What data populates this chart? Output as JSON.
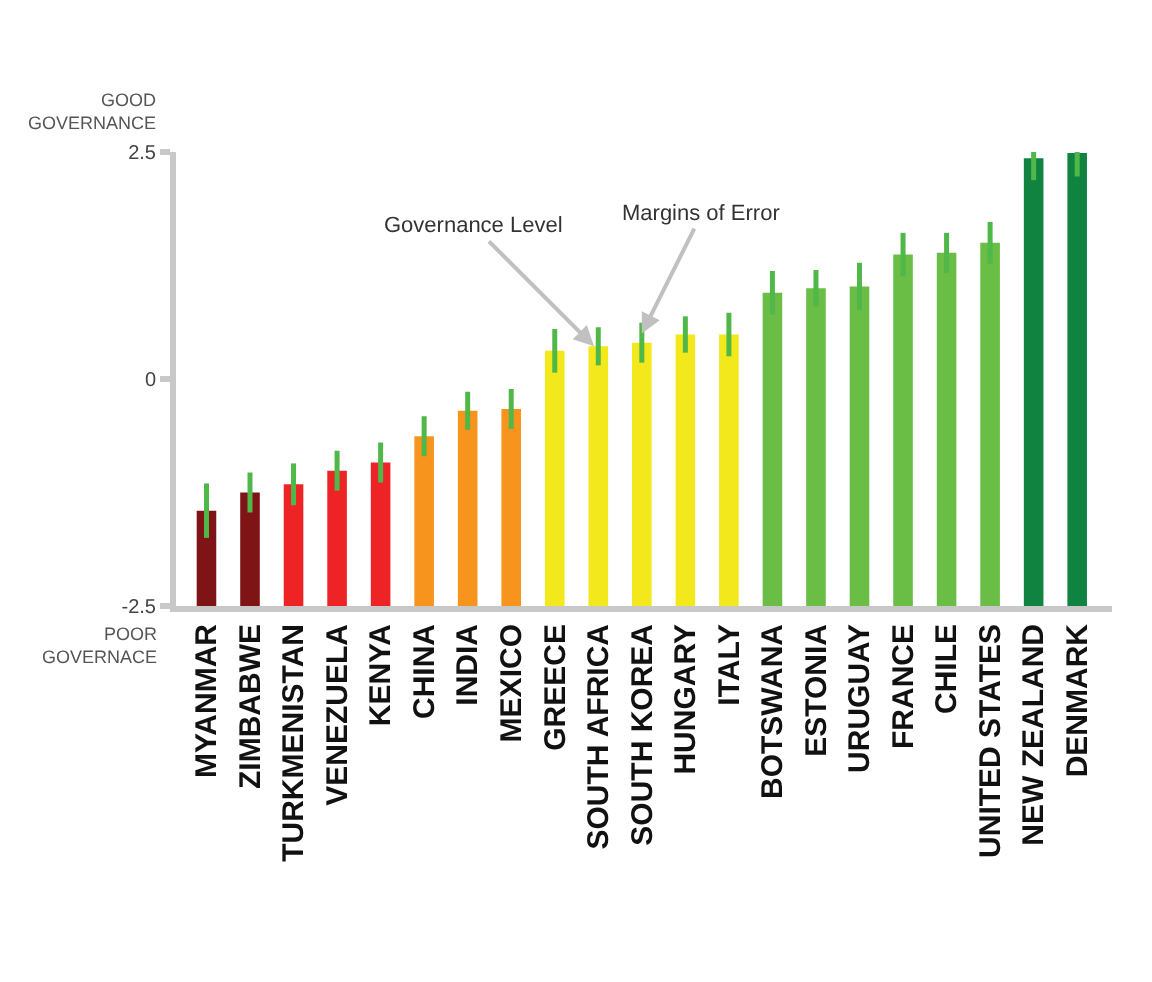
{
  "chart_data": {
    "type": "bar",
    "categories": [
      "MYANMAR",
      "ZIMBABWE",
      "TURKMENISTAN",
      "VENEZUELA",
      "KENYA",
      "CHINA",
      "INDIA",
      "MEXICO",
      "GREECE",
      "SOUTH AFRICA",
      "SOUTH KOREA",
      "HUNGARY",
      "ITALY",
      "BOTSWANA",
      "ESTONIA",
      "URUGUAY",
      "FRANCE",
      "CHILE",
      "UNITED STATES",
      "NEW ZEALAND",
      "DENMARK"
    ],
    "base": [
      -2.5,
      -2.5,
      -2.5,
      -2.5,
      -2.5,
      -2.5,
      -2.5,
      -2.5,
      -2.5,
      -2.5,
      -2.5,
      -2.5,
      -2.5,
      -2.5,
      -2.5,
      -2.5,
      -2.5,
      -2.5,
      -2.5,
      -2.5,
      -2.5
    ],
    "values": [
      1.05,
      1.25,
      1.34,
      1.49,
      1.58,
      1.87,
      2.15,
      2.17,
      2.81,
      2.86,
      2.9,
      2.99,
      2.99,
      3.45,
      3.5,
      3.52,
      3.87,
      3.89,
      4.0,
      4.93,
      4.99
    ],
    "errors": [
      0.3,
      0.22,
      0.23,
      0.22,
      0.22,
      0.22,
      0.21,
      0.22,
      0.24,
      0.21,
      0.22,
      0.2,
      0.24,
      0.24,
      0.2,
      0.26,
      0.24,
      0.22,
      0.23,
      0.24,
      0.26
    ],
    "colors": [
      "#7f1416",
      "#7f1416",
      "#ee2326",
      "#ee2326",
      "#ee2326",
      "#f7941d",
      "#f7941d",
      "#f7941d",
      "#f2e81c",
      "#f2e81c",
      "#f2e81c",
      "#f2e81c",
      "#f2e81c",
      "#6abd45",
      "#6abd45",
      "#6abd45",
      "#6abd45",
      "#6abd45",
      "#6abd45",
      "#108341",
      "#108341"
    ],
    "ylim": [
      -2.5,
      2.5
    ],
    "yticks": [
      -2.5,
      0,
      2.5
    ],
    "legend": false,
    "annotations": [
      "GOOD\nGOVERNANCE",
      "POOR\nGOVERNACE",
      {
        "text": "Governance Level",
        "x": "SOUTH AFRICA",
        "y": 0.36
      },
      {
        "text": "Margins of Error",
        "x": "SOUTH KOREA",
        "y": 0.5
      }
    ]
  }
}
